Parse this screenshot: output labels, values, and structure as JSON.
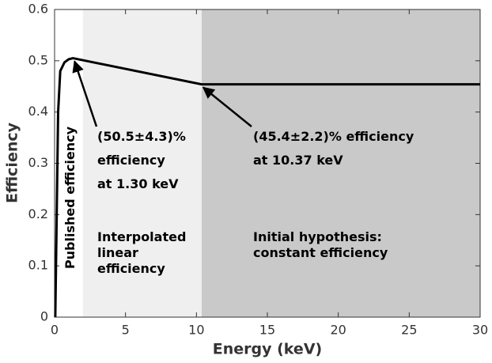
{
  "chart_data": {
    "type": "line",
    "xlabel": "Energy (keV)",
    "ylabel": "Efficiency",
    "xlim": [
      0,
      30
    ],
    "xticks": [
      0,
      5,
      10,
      15,
      20,
      25,
      30
    ],
    "ylim": [
      0,
      0.6
    ],
    "yticks": [
      0,
      0.1,
      0.2,
      0.3,
      0.4,
      0.5,
      0.6
    ],
    "regions": [
      {
        "xmin": 2,
        "xmax": 10.37,
        "color": "#efefef"
      },
      {
        "xmin": 10.37,
        "xmax": 30,
        "color": "#c9c9c9"
      }
    ],
    "series": [
      {
        "color": "#000000",
        "x": [
          0.05,
          0.15,
          0.25,
          0.4,
          0.7,
          1.0,
          1.3,
          10.37,
          30
        ],
        "values": [
          0,
          0.2,
          0.4,
          0.48,
          0.497,
          0.503,
          0.505,
          0.454,
          0.454
        ]
      }
    ],
    "annotations": [
      {
        "lines": [
          "Published efficiency"
        ]
      },
      {
        "lines": [
          "(50.5±4.3)%",
          "efficiency",
          "at 1.30 keV"
        ],
        "point": 6
      },
      {
        "lines": [
          "(45.4±2.2)% efficiency",
          "at 10.37 keV"
        ],
        "point": 7
      },
      {
        "lines": [
          "Interpolated",
          "linear",
          "efficiency"
        ]
      },
      {
        "lines": [
          "Initial hypothesis:",
          "constant efficiency"
        ]
      }
    ]
  }
}
